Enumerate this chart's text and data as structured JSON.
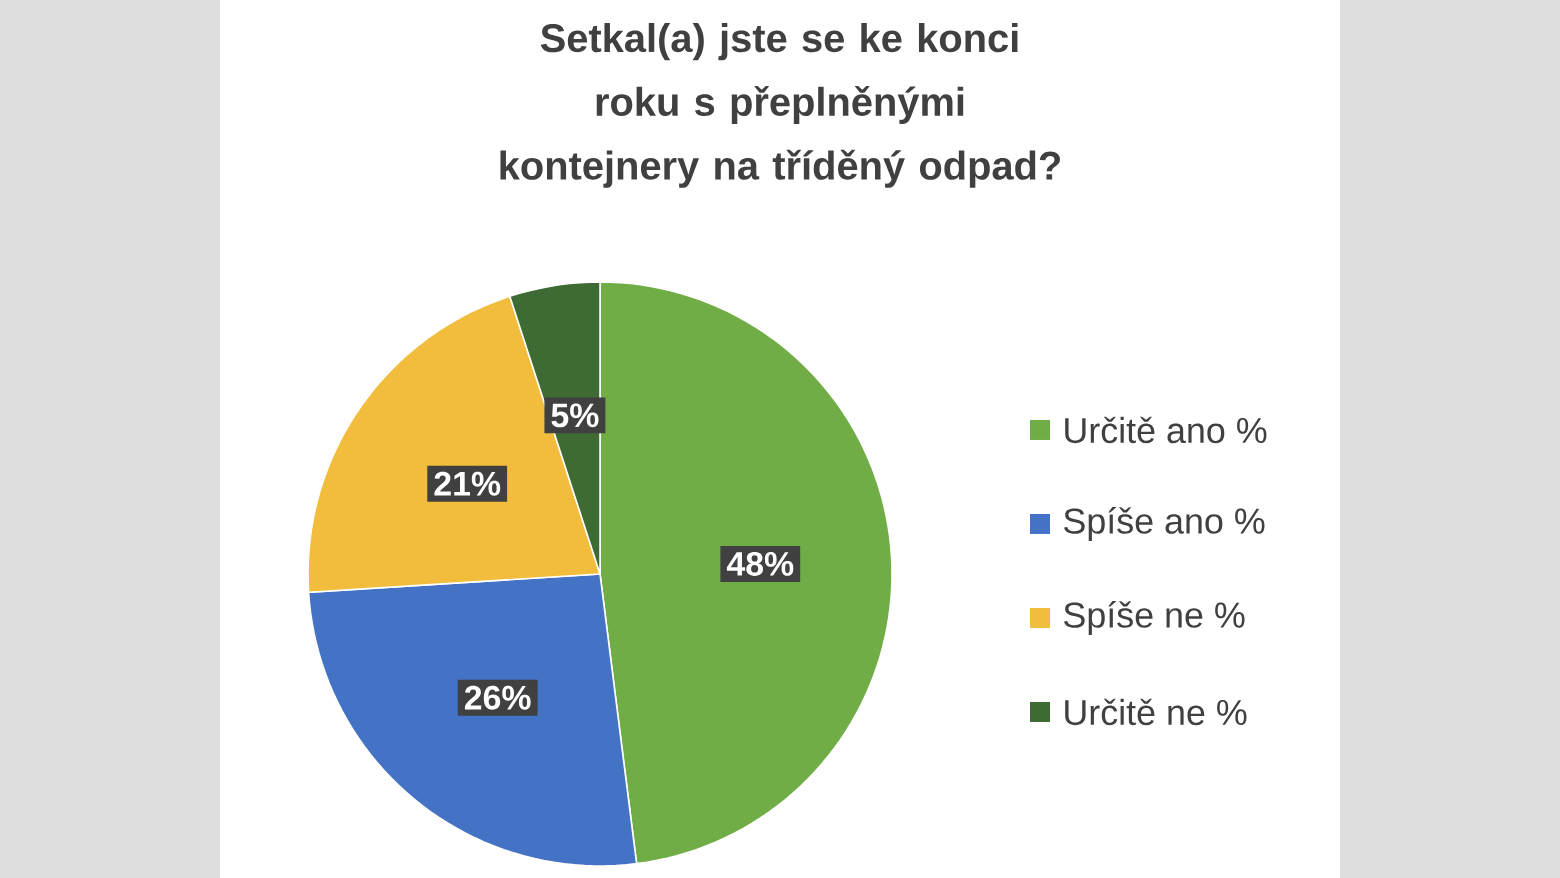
{
  "chart_data": {
    "type": "pie",
    "title": "Setkal(a) jste se ke konci roku s přeplněnými kontejnery na tříděný odpad?",
    "categories": [
      "Určitě ano %",
      "Spíše ano %",
      "Spíše ne %",
      "Určitě ne %"
    ],
    "values": [
      48,
      26,
      21,
      5
    ],
    "value_labels": [
      "48%",
      "26%",
      "21%",
      "5%"
    ],
    "colors": [
      "#70ad47",
      "#4472c4",
      "#f2bd3c",
      "#3e6b33"
    ],
    "legend": "right"
  }
}
